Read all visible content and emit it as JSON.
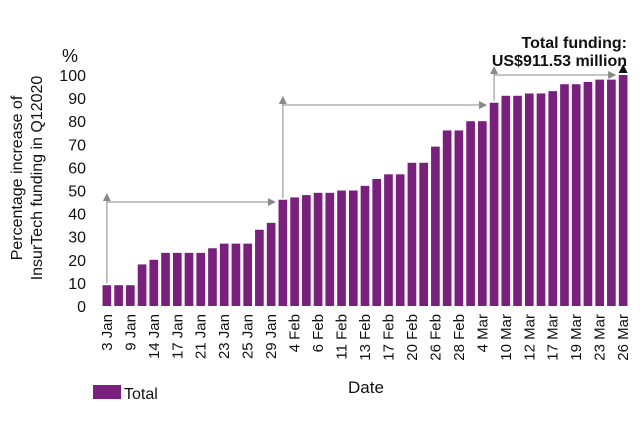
{
  "chart_data": {
    "type": "bar",
    "ylabel_line1": "Percentage increase of",
    "ylabel_line2": "InsurTech funding in Q12020",
    "y_unit": "%",
    "xlabel": "Date",
    "ylim": [
      0,
      100
    ],
    "yticks": [
      0,
      10,
      20,
      30,
      40,
      50,
      60,
      70,
      80,
      90,
      100
    ],
    "grid": false,
    "legend": {
      "position": "bottom-left",
      "label": "Total"
    },
    "bar_color": "#7b1f7e",
    "arrow_color": "#888888",
    "annotation_line1": "Total funding:",
    "annotation_line2": "US$911.53 million",
    "xtick_labels": [
      "3 Jan",
      "9 Jan",
      "14 Jan",
      "17 Jan",
      "21 Jan",
      "23 Jan",
      "25 Jan",
      "29 Jan",
      "4 Feb",
      "6 Feb",
      "11 Feb",
      "13 Feb",
      "17 Feb",
      "20 Feb",
      "26 Feb",
      "28 Feb",
      "4 Mar",
      "10 Mar",
      "12 Mar",
      "17 Mar",
      "19 Mar",
      "23 Mar",
      "26 Mar"
    ],
    "series": [
      {
        "name": "Total",
        "values": [
          9,
          9,
          9,
          18,
          20,
          23,
          23,
          23,
          23,
          25,
          27,
          27,
          27,
          33,
          36,
          46,
          47,
          48,
          49,
          49,
          50,
          50,
          52,
          55,
          57,
          57,
          62,
          62,
          69,
          76,
          76,
          80,
          80,
          88,
          91,
          91,
          92,
          92,
          93,
          96,
          96,
          97,
          98,
          98,
          100
        ]
      }
    ],
    "arrows": [
      {
        "from_bar": 0,
        "to_bar": 15,
        "level": 45
      },
      {
        "from_bar": 15,
        "to_bar": 33,
        "level": 87
      },
      {
        "from_bar": 33,
        "to_bar": 44,
        "level": 100
      }
    ]
  }
}
